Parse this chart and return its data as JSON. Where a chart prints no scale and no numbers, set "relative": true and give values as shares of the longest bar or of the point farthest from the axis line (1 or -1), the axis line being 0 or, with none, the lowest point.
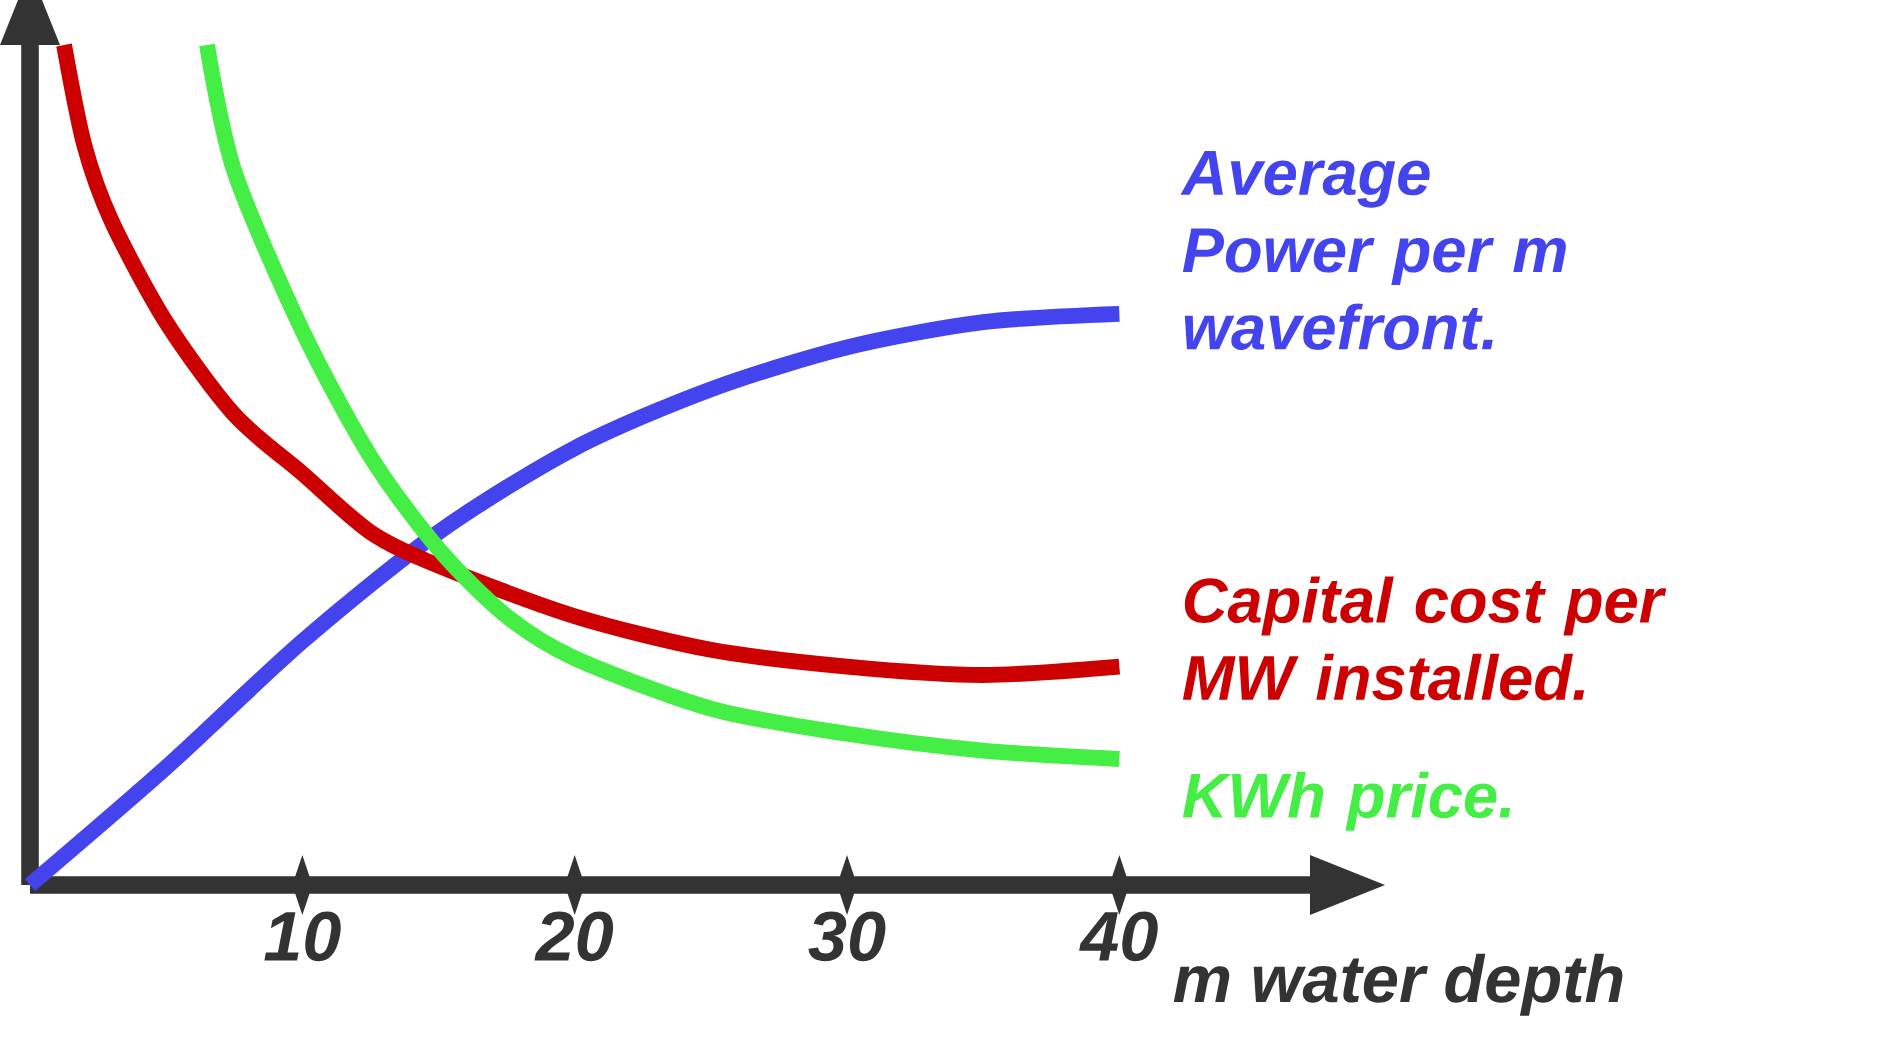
{
  "chart_data": {
    "type": "line",
    "relative": true,
    "xlabel": "m water depth",
    "xlim": [
      0,
      47
    ],
    "xticks": [
      10,
      20,
      30,
      40
    ],
    "grid": false,
    "marker": "none",
    "line_style": "solid",
    "series": [
      {
        "name": "Average Power per m wavefront.",
        "color": "#4444ee",
        "x": [
          0,
          5,
          10,
          15,
          20,
          25,
          30,
          35,
          40
        ],
        "values": [
          0,
          0.14,
          0.29,
          0.42,
          0.52,
          0.59,
          0.64,
          0.67,
          0.68
        ]
      },
      {
        "name": "Capital cost per MW installed.",
        "color": "#cc0000",
        "x": [
          1.25,
          2,
          3,
          5,
          7.5,
          10,
          12.5,
          15,
          20,
          25,
          30,
          35,
          40
        ],
        "values": [
          1.0,
          0.88,
          0.79,
          0.67,
          0.56,
          0.49,
          0.42,
          0.38,
          0.32,
          0.28,
          0.26,
          0.25,
          0.26
        ]
      },
      {
        "name": "KWh price.",
        "color": "#44ee44",
        "x": [
          6.5,
          7.5,
          10,
          12.5,
          15,
          17.5,
          20,
          25,
          30,
          35,
          40
        ],
        "values": [
          1.0,
          0.85,
          0.66,
          0.51,
          0.4,
          0.32,
          0.27,
          0.21,
          0.18,
          0.16,
          0.15
        ]
      }
    ]
  }
}
